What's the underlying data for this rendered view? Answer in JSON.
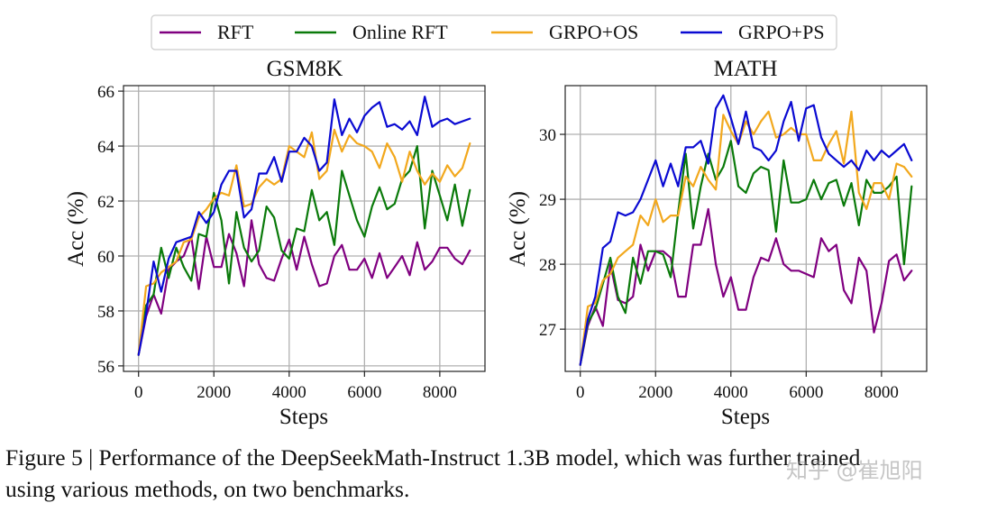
{
  "legend": {
    "items": [
      {
        "name": "RFT",
        "color": "#800080"
      },
      {
        "name": "Online RFT",
        "color": "#0a7a0a"
      },
      {
        "name": "GRPO+OS",
        "color": "#f2a81d"
      },
      {
        "name": "GRPO+PS",
        "color": "#0a0ad2"
      }
    ]
  },
  "chart_data": [
    {
      "type": "line",
      "title": "GSM8K",
      "xlabel": "Steps",
      "ylabel": "Acc (%)",
      "xlim": [
        -400,
        9200
      ],
      "ylim": [
        55.8,
        66.2
      ],
      "xticks": [
        0,
        2000,
        4000,
        6000,
        8000
      ],
      "yticks": [
        56,
        58,
        60,
        62,
        64,
        66
      ],
      "grid": true,
      "x": [
        0,
        200,
        400,
        600,
        800,
        1000,
        1200,
        1400,
        1600,
        1800,
        2000,
        2200,
        2400,
        2600,
        2800,
        3000,
        3200,
        3400,
        3600,
        3800,
        4000,
        4200,
        4400,
        4600,
        4800,
        5000,
        5200,
        5400,
        5600,
        5800,
        6000,
        6200,
        6400,
        6600,
        6800,
        7000,
        7200,
        7400,
        7600,
        7800,
        8000,
        8200,
        8400,
        8600,
        8800
      ],
      "series": [
        {
          "name": "RFT",
          "color": "#800080",
          "values": [
            56.4,
            57.8,
            58.6,
            57.9,
            59.5,
            59.8,
            60.0,
            60.7,
            58.8,
            60.7,
            59.6,
            59.6,
            60.8,
            60.1,
            58.9,
            61.3,
            59.7,
            59.2,
            59.1,
            59.9,
            60.6,
            59.5,
            60.7,
            59.7,
            58.9,
            59.0,
            60.0,
            60.4,
            59.5,
            59.5,
            59.9,
            59.2,
            60.1,
            59.2,
            59.6,
            60.0,
            59.3,
            60.5,
            59.5,
            59.8,
            60.3,
            60.3,
            59.9,
            59.7,
            60.2
          ]
        },
        {
          "name": "Online RFT",
          "color": "#0a7a0a",
          "values": [
            56.4,
            58.2,
            58.6,
            60.3,
            59.2,
            60.3,
            59.6,
            59.1,
            60.8,
            60.7,
            62.3,
            61.3,
            59.0,
            61.6,
            60.3,
            59.8,
            60.2,
            61.8,
            61.4,
            60.2,
            59.9,
            61.0,
            60.9,
            62.4,
            61.3,
            61.6,
            60.4,
            63.1,
            62.2,
            61.3,
            60.7,
            61.8,
            62.5,
            61.7,
            61.9,
            62.8,
            63.1,
            64.0,
            61.0,
            63.1,
            62.2,
            61.3,
            62.6,
            61.1,
            62.4
          ]
        },
        {
          "name": "GRPO+OS",
          "color": "#f2a81d",
          "values": [
            56.4,
            58.9,
            59.0,
            59.4,
            59.6,
            59.8,
            60.5,
            60.6,
            61.4,
            61.7,
            62.1,
            62.3,
            62.2,
            63.3,
            61.8,
            61.9,
            62.5,
            62.8,
            62.6,
            62.8,
            64.0,
            63.8,
            63.6,
            64.5,
            62.8,
            63.1,
            64.6,
            63.8,
            64.4,
            64.1,
            64.0,
            63.8,
            63.2,
            64.1,
            63.6,
            62.7,
            63.8,
            63.1,
            62.6,
            63.0,
            62.7,
            63.3,
            62.9,
            63.2,
            64.1
          ]
        },
        {
          "name": "GRPO+PS",
          "color": "#0a0ad2",
          "values": [
            56.4,
            57.9,
            59.8,
            58.7,
            59.9,
            60.5,
            60.6,
            60.7,
            61.6,
            61.2,
            61.6,
            62.6,
            63.1,
            63.1,
            61.4,
            61.7,
            63.0,
            63.0,
            63.6,
            62.7,
            63.8,
            63.8,
            64.3,
            64.0,
            63.1,
            63.4,
            65.7,
            64.4,
            65.0,
            64.5,
            65.1,
            65.4,
            65.6,
            64.7,
            64.8,
            64.6,
            64.9,
            64.4,
            65.8,
            64.7,
            64.9,
            65.0,
            64.8,
            64.9,
            65.0
          ]
        }
      ]
    },
    {
      "type": "line",
      "title": "MATH",
      "xlabel": "Steps",
      "ylabel": "Acc (%)",
      "xlim": [
        -400,
        9200
      ],
      "ylim": [
        26.35,
        30.75
      ],
      "xticks": [
        0,
        2000,
        4000,
        6000,
        8000
      ],
      "yticks": [
        27,
        28,
        29,
        30
      ],
      "grid": true,
      "x": [
        0,
        200,
        400,
        600,
        800,
        1000,
        1200,
        1400,
        1600,
        1800,
        2000,
        2200,
        2400,
        2600,
        2800,
        3000,
        3200,
        3400,
        3600,
        3800,
        4000,
        4200,
        4400,
        4600,
        4800,
        5000,
        5200,
        5400,
        5600,
        5800,
        6000,
        6200,
        6400,
        6600,
        6800,
        7000,
        7200,
        7400,
        7600,
        7800,
        8000,
        8200,
        8400,
        8600,
        8800
      ],
      "series": [
        {
          "name": "RFT",
          "color": "#800080",
          "values": [
            26.45,
            27.05,
            27.35,
            27.05,
            28.0,
            27.45,
            27.4,
            27.5,
            28.3,
            27.9,
            28.2,
            28.2,
            28.1,
            27.5,
            27.5,
            28.3,
            28.3,
            28.85,
            28.0,
            27.5,
            27.8,
            27.3,
            27.3,
            27.8,
            28.1,
            28.05,
            28.4,
            28.0,
            27.9,
            27.9,
            27.85,
            27.8,
            28.4,
            28.2,
            28.3,
            27.6,
            27.4,
            28.1,
            27.9,
            26.95,
            27.4,
            28.05,
            28.15,
            27.75,
            27.9
          ]
        },
        {
          "name": "Online RFT",
          "color": "#0a7a0a",
          "values": [
            26.45,
            27.1,
            27.3,
            27.7,
            28.1,
            27.5,
            27.25,
            28.1,
            27.7,
            28.2,
            28.2,
            28.15,
            27.8,
            28.8,
            29.7,
            28.55,
            29.2,
            29.7,
            29.3,
            29.5,
            29.9,
            29.2,
            29.1,
            29.4,
            29.5,
            29.45,
            28.5,
            29.6,
            28.95,
            28.95,
            29.0,
            29.3,
            29.0,
            29.25,
            29.3,
            28.9,
            29.25,
            28.6,
            29.3,
            29.1,
            29.1,
            29.2,
            29.35,
            28.0,
            29.2
          ]
        },
        {
          "name": "GRPO+OS",
          "color": "#f2a81d",
          "values": [
            26.45,
            27.35,
            27.4,
            27.75,
            27.85,
            28.1,
            28.2,
            28.3,
            28.75,
            28.6,
            29.0,
            28.65,
            28.75,
            28.75,
            29.35,
            29.2,
            29.5,
            29.3,
            29.15,
            30.3,
            30.05,
            29.85,
            30.2,
            30.0,
            30.2,
            30.35,
            29.95,
            30.0,
            30.1,
            30.0,
            30.0,
            29.6,
            29.6,
            29.85,
            30.05,
            29.55,
            30.35,
            29.1,
            28.85,
            29.25,
            29.25,
            29.0,
            29.55,
            29.5,
            29.35
          ]
        },
        {
          "name": "GRPO+PS",
          "color": "#0a0ad2",
          "values": [
            26.45,
            27.15,
            27.5,
            28.25,
            28.35,
            28.8,
            28.75,
            28.8,
            29.0,
            29.3,
            29.6,
            29.2,
            29.55,
            29.2,
            29.8,
            29.8,
            29.9,
            29.55,
            30.4,
            30.6,
            30.25,
            29.85,
            30.35,
            29.8,
            29.75,
            29.6,
            29.75,
            30.2,
            30.5,
            29.9,
            30.4,
            30.45,
            29.95,
            29.7,
            29.6,
            29.5,
            29.6,
            29.45,
            29.75,
            29.6,
            29.75,
            29.65,
            29.75,
            29.85,
            29.6
          ]
        }
      ]
    }
  ],
  "caption": {
    "line1": "Figure 5 | Performance of the DeepSeekMath-Instruct 1.3B model, which was further trained",
    "line2": "using various methods, on two benchmarks."
  },
  "watermark": "知乎 @崔旭阳"
}
